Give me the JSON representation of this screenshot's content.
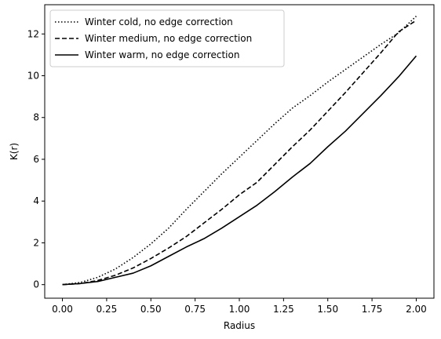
{
  "chart_data": {
    "type": "line",
    "title": "",
    "xlabel": "Radius",
    "ylabel": "K(r)",
    "xlim": [
      -0.1,
      2.1
    ],
    "ylim": [
      -0.65,
      13.4
    ],
    "xticks": [
      0.0,
      0.25,
      0.5,
      0.75,
      1.0,
      1.25,
      1.5,
      1.75,
      2.0
    ],
    "xtick_labels": [
      "0.00",
      "0.25",
      "0.50",
      "0.75",
      "1.00",
      "1.25",
      "1.50",
      "1.75",
      "2.00"
    ],
    "yticks": [
      0,
      2,
      4,
      6,
      8,
      10,
      12
    ],
    "ytick_labels": [
      "0",
      "2",
      "4",
      "6",
      "8",
      "10",
      "12"
    ],
    "grid": false,
    "legend_position": "top-left",
    "series": [
      {
        "name": "Winter cold, no edge correction",
        "line_style": "dotted",
        "color": "#000000",
        "x": [
          0,
          0.1,
          0.2,
          0.3,
          0.4,
          0.5,
          0.6,
          0.7,
          0.8,
          0.9,
          1.0,
          1.1,
          1.2,
          1.3,
          1.4,
          1.5,
          1.6,
          1.7,
          1.8,
          1.9,
          2.0
        ],
        "y": [
          0,
          0.1,
          0.35,
          0.75,
          1.3,
          1.95,
          2.7,
          3.6,
          4.45,
          5.3,
          6.1,
          6.9,
          7.7,
          8.45,
          9.05,
          9.7,
          10.3,
          10.9,
          11.5,
          12.05,
          12.85
        ]
      },
      {
        "name": "Winter medium, no edge correction",
        "line_style": "dashed",
        "color": "#000000",
        "x": [
          0,
          0.1,
          0.2,
          0.3,
          0.4,
          0.5,
          0.6,
          0.7,
          0.8,
          0.9,
          1.0,
          1.1,
          1.2,
          1.3,
          1.4,
          1.5,
          1.6,
          1.7,
          1.8,
          1.9,
          2.0
        ],
        "y": [
          0,
          0.05,
          0.2,
          0.45,
          0.8,
          1.25,
          1.75,
          2.3,
          2.95,
          3.6,
          4.3,
          4.9,
          5.75,
          6.6,
          7.4,
          8.3,
          9.2,
          10.15,
          11.1,
          12.1,
          12.65
        ]
      },
      {
        "name": "Winter warm, no edge correction",
        "line_style": "solid",
        "color": "#000000",
        "x": [
          0,
          0.1,
          0.2,
          0.3,
          0.4,
          0.5,
          0.6,
          0.7,
          0.8,
          0.9,
          1.0,
          1.1,
          1.2,
          1.3,
          1.4,
          1.5,
          1.6,
          1.7,
          1.8,
          1.9,
          2.0
        ],
        "y": [
          0,
          0.05,
          0.15,
          0.35,
          0.55,
          0.9,
          1.35,
          1.8,
          2.2,
          2.7,
          3.25,
          3.8,
          4.45,
          5.15,
          5.8,
          6.6,
          7.35,
          8.2,
          9.05,
          9.95,
          10.95
        ]
      }
    ]
  }
}
